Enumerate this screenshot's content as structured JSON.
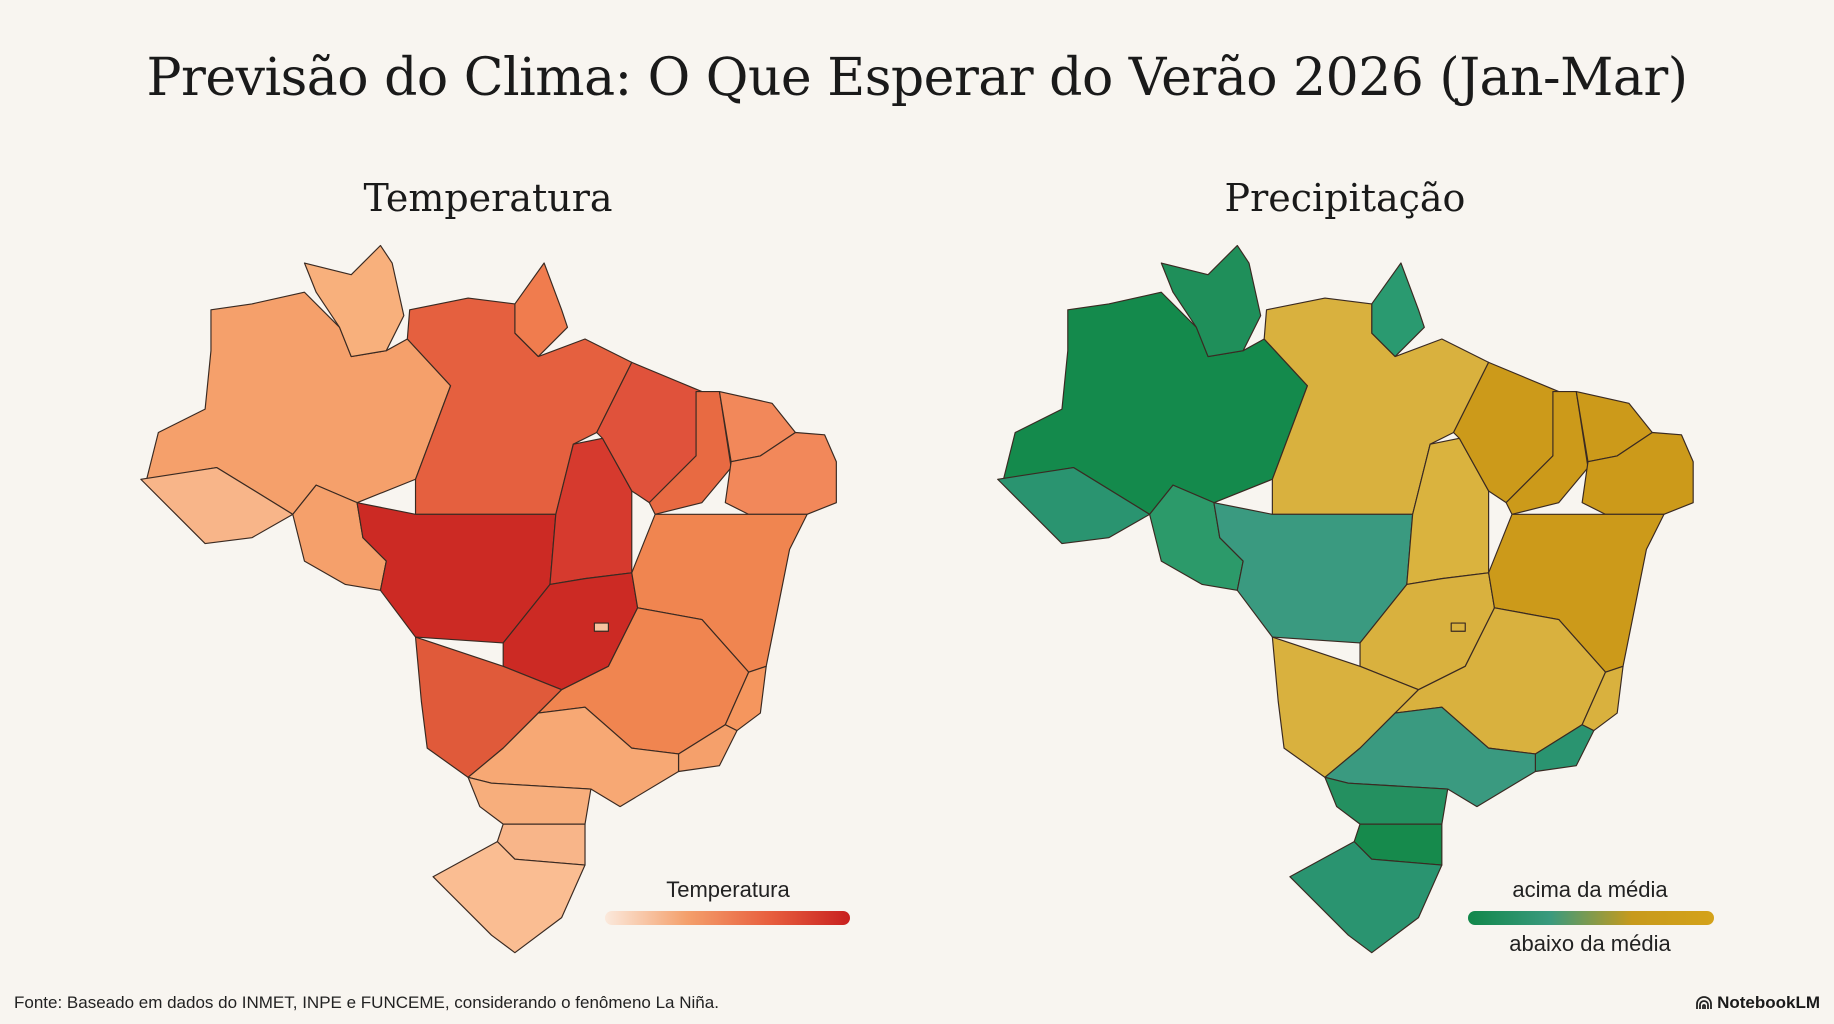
{
  "title": "Previsão do Clima: O Que Esperar do Verão 2026 (Jan-Mar)",
  "maps": {
    "temperature": {
      "title": "Temperatura",
      "legend_label": "Temperatura",
      "legend_gradient": [
        "#fbe9dc",
        "#f4a06c",
        "#e8603f",
        "#c8201f"
      ],
      "fills": {
        "RR": "#f8b07c",
        "AP": "#f07c4e",
        "AM": "#f5a06b",
        "AC": "#f8b589",
        "RO": "#f5a06b",
        "PA": "#e5603f",
        "MT": "#cc2a24",
        "TO": "#d63a2e",
        "GO": "#cc2a24",
        "MS": "#e05a3a",
        "MA": "#e0523b",
        "PI": "#e86a42",
        "CE": "#f2885a",
        "NE": "#f2885a",
        "BA": "#f08550",
        "MG": "#f08550",
        "ES": "#f5965e",
        "RJ": "#f5a06b",
        "SP": "#f7a874",
        "PR": "#f7ae7c",
        "SC": "#f8b589",
        "RS": "#fabd92",
        "DF": "#f8c3a0"
      }
    },
    "precipitation": {
      "title": "Precipitação",
      "legend_top_label": "acima da média",
      "legend_bottom_label": "abaixo da média",
      "legend_gradient": [
        "#11874a",
        "#3a9a7e",
        "#c79a1c",
        "#d4a21a"
      ],
      "fills": {
        "RR": "#1f8f5a",
        "AP": "#2a9a70",
        "AM": "#148a4c",
        "AC": "#2a9470",
        "RO": "#2c9a6a",
        "PA": "#d9b13e",
        "MT": "#3a9a80",
        "TO": "#dab33e",
        "GO": "#d9b13e",
        "MS": "#d9b13e",
        "MA": "#cc9a1a",
        "PI": "#cc9a1a",
        "CE": "#cc9a1a",
        "NE": "#cc9a1a",
        "BA": "#cc9a1a",
        "MG": "#d9b13e",
        "ES": "#d9b13e",
        "RJ": "#2a9470",
        "SP": "#3a9a80",
        "PR": "#249060",
        "SC": "#168a4c",
        "RS": "#2a9470",
        "DF": "#d9b13e"
      }
    }
  },
  "footer": {
    "source": "Fonte: Baseado em dados do INMET, INPE e FUNCEME, considerando o fenômeno La Niña.",
    "brand": "NotebookLM"
  }
}
